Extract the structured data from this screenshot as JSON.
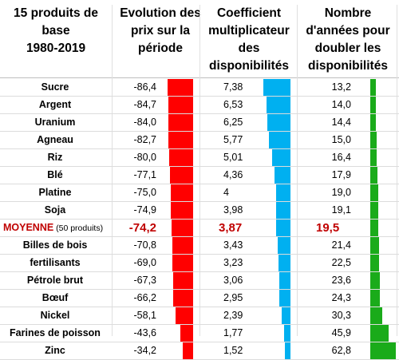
{
  "headers": {
    "col0": [
      "15 produits de",
      "base",
      "1980-2019"
    ],
    "col1": [
      "Evolution des",
      "prix sur la",
      "période"
    ],
    "col2": [
      "Coefficient",
      "multiplicateur",
      "des",
      "disponibilités"
    ],
    "col3": [
      "Nombre",
      "d'années pour",
      "doubler les",
      "disponibilités"
    ]
  },
  "colors": {
    "price_bar": "#ff0000",
    "coef_bar": "#00b0f0",
    "years_bar": "#1aab1a",
    "average_text": "#c00000"
  },
  "rows": [
    {
      "name": "Sucre",
      "price": "-86,4",
      "coef": "7,38",
      "years": "13,2",
      "price_v": -86.4,
      "coef_v": 7.38,
      "years_v": 13.2
    },
    {
      "name": "Argent",
      "price": "-84,7",
      "coef": "6,53",
      "years": "14,0",
      "price_v": -84.7,
      "coef_v": 6.53,
      "years_v": 14.0
    },
    {
      "name": "Uranium",
      "price": "-84,0",
      "coef": "6,25",
      "years": "14,4",
      "price_v": -84.0,
      "coef_v": 6.25,
      "years_v": 14.4
    },
    {
      "name": "Agneau",
      "price": "-82,7",
      "coef": "5,77",
      "years": "15,0",
      "price_v": -82.7,
      "coef_v": 5.77,
      "years_v": 15.0
    },
    {
      "name": "Riz",
      "price": "-80,0",
      "coef": "5,01",
      "years": "16,4",
      "price_v": -80.0,
      "coef_v": 5.01,
      "years_v": 16.4
    },
    {
      "name": "Blé",
      "price": "-77,1",
      "coef": "4,36",
      "years": "17,9",
      "price_v": -77.1,
      "coef_v": 4.36,
      "years_v": 17.9
    },
    {
      "name": "Platine",
      "price": "-75,0",
      "coef": "4",
      "years": "19,0",
      "price_v": -75.0,
      "coef_v": 4.0,
      "years_v": 19.0
    },
    {
      "name": "Soja",
      "price": "-74,9",
      "coef": "3,98",
      "years": "19,1",
      "price_v": -74.9,
      "coef_v": 3.98,
      "years_v": 19.1
    },
    {
      "name": "MOYENNE",
      "suffix": "(50 produits)",
      "price": "-74,2",
      "coef": "3,87",
      "years": "19,5",
      "price_v": -74.2,
      "coef_v": 3.87,
      "years_v": 19.5,
      "average": true
    },
    {
      "name": "Billes de bois",
      "price": "-70,8",
      "coef": "3,43",
      "years": "21,4",
      "price_v": -70.8,
      "coef_v": 3.43,
      "years_v": 21.4
    },
    {
      "name": "fertilisants",
      "price": "-69,0",
      "coef": "3,23",
      "years": "22,5",
      "price_v": -69.0,
      "coef_v": 3.23,
      "years_v": 22.5
    },
    {
      "name": "Pétrole brut",
      "price": "-67,3",
      "coef": "3,06",
      "years": "23,6",
      "price_v": -67.3,
      "coef_v": 3.06,
      "years_v": 23.6
    },
    {
      "name": "Bœuf",
      "price": "-66,2",
      "coef": "2,95",
      "years": "24,3",
      "price_v": -66.2,
      "coef_v": 2.95,
      "years_v": 24.3
    },
    {
      "name": "Nickel",
      "price": "-58,1",
      "coef": "2,39",
      "years": "30,3",
      "price_v": -58.1,
      "coef_v": 2.39,
      "years_v": 30.3
    },
    {
      "name": "Farines de poisson",
      "price": "-43,6",
      "coef": "1,77",
      "years": "45,9",
      "price_v": -43.6,
      "coef_v": 1.77,
      "years_v": 45.9
    },
    {
      "name": "Zinc",
      "price": "-34,2",
      "coef": "1,52",
      "years": "62,8",
      "price_v": -34.2,
      "coef_v": 1.52,
      "years_v": 62.8
    }
  ]
}
